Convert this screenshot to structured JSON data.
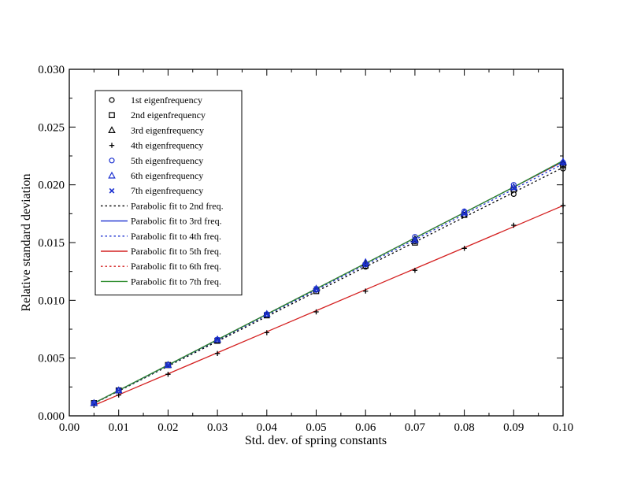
{
  "chart_data": {
    "type": "scatter",
    "title": "",
    "xlabel": "Std. dev. of spring constants",
    "ylabel": "Relative standard deviation",
    "xlim": [
      0.0,
      0.1
    ],
    "ylim": [
      0.0,
      0.03
    ],
    "xticks": [
      "0.00",
      "0.01",
      "0.02",
      "0.03",
      "0.04",
      "0.05",
      "0.06",
      "0.07",
      "0.08",
      "0.09",
      "0.10"
    ],
    "yticks": [
      "0.000",
      "0.005",
      "0.010",
      "0.015",
      "0.020",
      "0.025",
      "0.030"
    ],
    "grid": false,
    "legend_position": "top-left",
    "x": [
      0.005,
      0.01,
      0.02,
      0.03,
      0.04,
      0.05,
      0.06,
      0.07,
      0.08,
      0.09,
      0.1
    ],
    "series": [
      {
        "name": "1st eigenfrequency",
        "kind": "marker",
        "marker": "circle",
        "color": "#000000",
        "values": [
          0.0011,
          0.0022,
          0.0044,
          0.0065,
          0.0087,
          0.0109,
          0.0129,
          0.0151,
          0.0174,
          0.0192,
          0.0214
        ]
      },
      {
        "name": "2nd eigenfrequency",
        "kind": "marker",
        "marker": "square",
        "color": "#000000",
        "values": [
          0.0011,
          0.0022,
          0.0044,
          0.0065,
          0.0087,
          0.0108,
          0.013,
          0.015,
          0.0174,
          0.0196,
          0.0217
        ]
      },
      {
        "name": "3rd eigenfrequency",
        "kind": "marker",
        "marker": "triangle",
        "color": "#000000",
        "values": [
          0.0011,
          0.0022,
          0.0044,
          0.0066,
          0.0088,
          0.011,
          0.0132,
          0.0153,
          0.0176,
          0.0198,
          0.0219
        ]
      },
      {
        "name": "4th eigenfrequency",
        "kind": "marker",
        "marker": "plus",
        "color": "#000000",
        "values": [
          0.0009,
          0.0018,
          0.0036,
          0.0054,
          0.0072,
          0.009,
          0.0108,
          0.0126,
          0.0145,
          0.0165,
          0.0182
        ]
      },
      {
        "name": "5th eigenfrequency",
        "kind": "marker",
        "marker": "circle",
        "color": "#1a2fd0",
        "values": [
          0.0011,
          0.0022,
          0.0044,
          0.0066,
          0.0088,
          0.0109,
          0.0131,
          0.0155,
          0.0177,
          0.02,
          0.0219
        ]
      },
      {
        "name": "6th eigenfrequency",
        "kind": "marker",
        "marker": "triangle",
        "color": "#1a2fd0",
        "values": [
          0.0011,
          0.0022,
          0.0044,
          0.0066,
          0.0088,
          0.011,
          0.0133,
          0.0152,
          0.0176,
          0.0198,
          0.022
        ]
      },
      {
        "name": "7th eigenfrequency",
        "kind": "marker",
        "marker": "x",
        "color": "#1a2fd0",
        "values": [
          0.0011,
          0.0022,
          0.0044,
          0.0066,
          0.0088,
          0.011,
          0.0131,
          0.0152,
          0.0175,
          0.0197,
          0.0219
        ]
      },
      {
        "name": "Parabolic fit to 2nd freq.",
        "kind": "line",
        "dash": "dotted",
        "color": "#000000",
        "values": [
          0.00107,
          0.00215,
          0.0043,
          0.00645,
          0.0086,
          0.01075,
          0.0129,
          0.01505,
          0.0172,
          0.01935,
          0.0215
        ]
      },
      {
        "name": "Parabolic fit to 3rd freq.",
        "kind": "line",
        "dash": "solid",
        "color": "#1a2fd0",
        "values": [
          0.0011,
          0.0022,
          0.0044,
          0.0066,
          0.0088,
          0.011,
          0.0132,
          0.0154,
          0.0176,
          0.0198,
          0.022
        ]
      },
      {
        "name": "Parabolic fit to 4th freq.",
        "kind": "line",
        "dash": "dotted",
        "color": "#1a2fd0",
        "values": [
          0.00109,
          0.00218,
          0.00436,
          0.00654,
          0.00872,
          0.0109,
          0.01308,
          0.01526,
          0.01744,
          0.01962,
          0.0218
        ]
      },
      {
        "name": "Parabolic fit to 5th freq.",
        "kind": "line",
        "dash": "solid",
        "color": "#d42020",
        "values": [
          0.00091,
          0.00182,
          0.00364,
          0.00546,
          0.00728,
          0.0091,
          0.01092,
          0.01274,
          0.01456,
          0.01638,
          0.0182
        ]
      },
      {
        "name": "Parabolic fit to 6th freq.",
        "kind": "line",
        "dash": "dotted",
        "color": "#d42020",
        "values": [
          0.0011,
          0.0022,
          0.0044,
          0.0066,
          0.0088,
          0.011,
          0.0132,
          0.0154,
          0.0176,
          0.0198,
          0.022
        ]
      },
      {
        "name": "Parabolic fit to 7th freq.",
        "kind": "line",
        "dash": "solid",
        "color": "#2a8a2a",
        "values": [
          0.0011,
          0.0022,
          0.0044,
          0.0066,
          0.0088,
          0.011,
          0.0132,
          0.0154,
          0.0176,
          0.0198,
          0.0221
        ]
      }
    ]
  }
}
